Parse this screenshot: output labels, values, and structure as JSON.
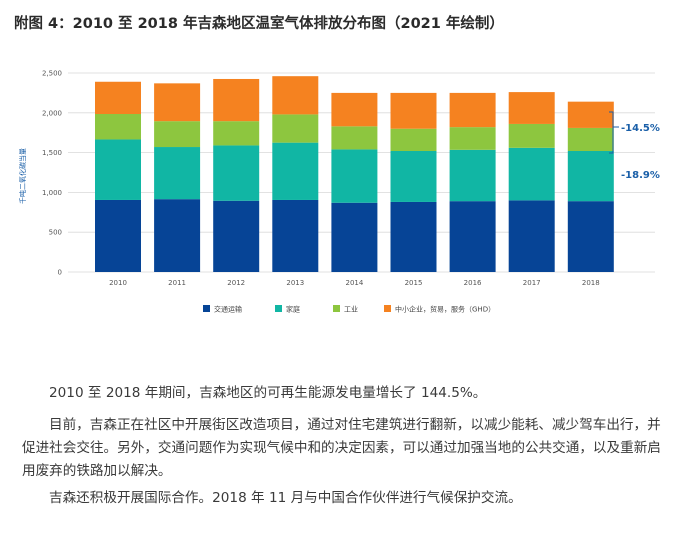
{
  "figure_title": "附图 4：2010 至 2018 年吉森地区温室气体排放分布图（2021 年绘制）",
  "chart_data": {
    "type": "bar",
    "stacked": true,
    "ylabel": "千吨二氧化碳当量",
    "ylim": [
      0,
      2500
    ],
    "yticks": [
      "0",
      "500",
      "1,000",
      "1,500",
      "2,000",
      "2,500"
    ],
    "grid": true,
    "legend_position": "bottom",
    "categories": [
      "2010",
      "2011",
      "2012",
      "2013",
      "2014",
      "2015",
      "2016",
      "2017",
      "2018"
    ],
    "series": [
      {
        "name": "交通运输",
        "color": "#064496",
        "values": [
          905,
          915,
          895,
          905,
          870,
          880,
          890,
          900,
          890
        ]
      },
      {
        "name": "家庭",
        "color": "#11b6a4",
        "values": [
          760,
          655,
          695,
          720,
          670,
          640,
          645,
          660,
          630
        ]
      },
      {
        "name": "工业",
        "color": "#8dc63f",
        "values": [
          320,
          325,
          305,
          355,
          290,
          280,
          285,
          300,
          290
        ]
      },
      {
        "name": "中小企业，贸易，服务（GHD）",
        "color": "#f58220",
        "values": [
          405,
          475,
          530,
          480,
          420,
          450,
          430,
          400,
          330
        ]
      }
    ],
    "annotations": [
      "-14.5%",
      "-18.9%"
    ]
  },
  "paragraphs": [
    "2010 至 2018 年期间，吉森地区的可再生能源发电量增长了 144.5%。",
    "目前，吉森正在社区中开展街区改造项目，通过对住宅建筑进行翻新，以减少能耗、减少驾车出行，并促进社会交往。另外，交通问题作为实现气候中和的决定因素，可以通过加强当地的公共交通，以及重新启用废弃的铁路加以解决。",
    "吉森还积极开展国际合作。2018 年 11 月与中国合作伙伴进行气候保护交流。"
  ]
}
